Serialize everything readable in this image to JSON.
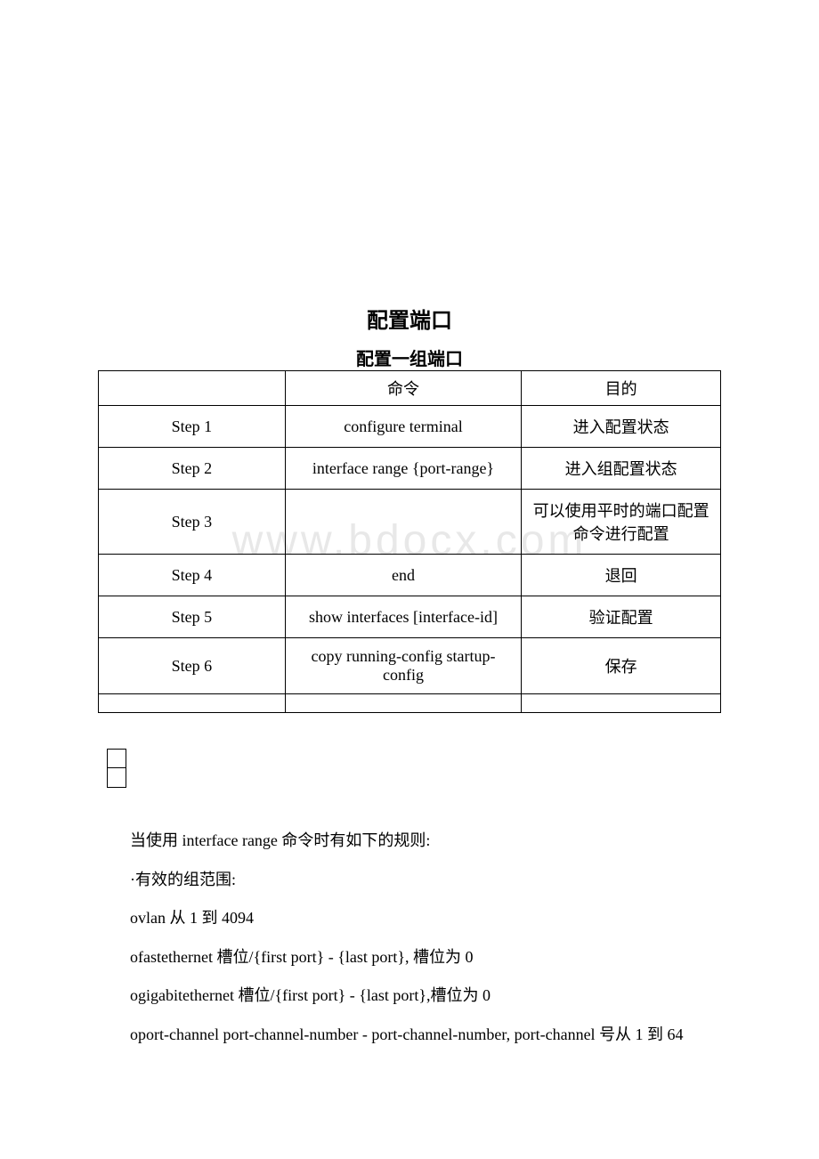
{
  "title": "配置端口",
  "subtitle": "配置一组端口",
  "watermark": "www.bdocx.com",
  "table": {
    "headers": [
      "",
      "命令",
      "目的"
    ],
    "rows": [
      [
        "Step 1",
        "configure terminal",
        "进入配置状态"
      ],
      [
        "Step 2",
        "interface range {port-range}",
        "进入组配置状态"
      ],
      [
        "Step 3",
        "",
        "可以使用平时的端口配置命令进行配置"
      ],
      [
        "Step 4",
        "end",
        "退回"
      ],
      [
        "Step 5",
        "show interfaces [interface-id]",
        "验证配置"
      ],
      [
        "Step 6",
        "copy running-config startup-config",
        "保存"
      ],
      [
        "",
        "",
        ""
      ]
    ]
  },
  "paragraphs": [
    "当使用 interface range 命令时有如下的规则:",
    "·有效的组范围:",
    "ovlan 从 1 到 4094",
    "ofastethernet 槽位/{first port} - {last port}, 槽位为 0",
    "ogigabitethernet 槽位/{first port} - {last port},槽位为 0",
    "oport-channel port-channel-number - port-channel-number, port-channel 号从 1 到 64"
  ]
}
